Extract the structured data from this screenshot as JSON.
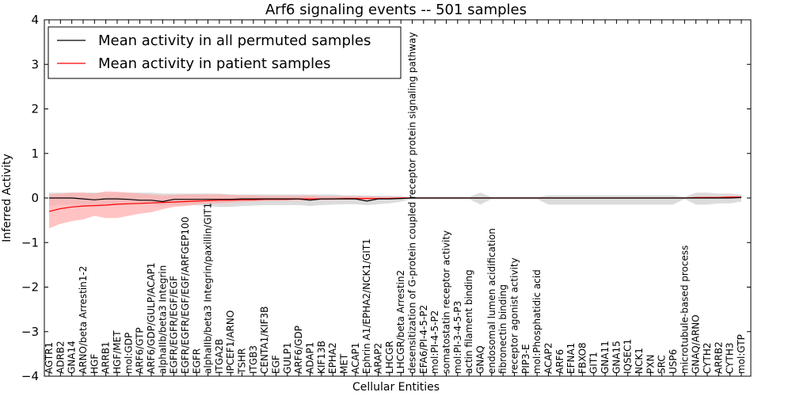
{
  "chart_data": {
    "type": "line",
    "title": "Arf6 signaling events -- 501 samples",
    "xlabel": "Cellular Entities",
    "ylabel": "Inferred Activity",
    "ylim": [
      -4,
      4
    ],
    "yticks": [
      -4,
      -3,
      -2,
      -1,
      0,
      1,
      2,
      3,
      4
    ],
    "ytick_labels": [
      "−4",
      "−3",
      "−2",
      "−1",
      "0",
      "1",
      "2",
      "3",
      "4"
    ],
    "legend_position": "top-left",
    "categories": [
      "AGTR1",
      "ADRB2",
      "GNA14",
      "ARNO/beta Arrestin1-2",
      "HGF",
      "ARRB1",
      "HGF/MET",
      "mol:GDP",
      "ARF6/GTP",
      "ARF6/GDP/GULP/ACAP1",
      "alphaIIb/beta3 Integrin",
      "EGFR/EGFR/EGF/EGF",
      "EGFR/EGFR/EGF/EGF/ARFGEP100",
      "EGFR",
      "alphaIIb/beta3 Integrin/paxillin/GIT1",
      "ITGA2B",
      "IPCEF1/ARNO",
      "TSHR",
      "ITGB3",
      "CENTA1/KIF3B",
      "EGF",
      "GULP1",
      "ARF6/GDP",
      "ADAP1",
      "KIF13B",
      "EPHA2",
      "MET",
      "ACAP1",
      "Ephrin A1/EPHA2/NCK1/GIT1",
      "ARAP2",
      "LHCGR",
      "LHCGR/beta Arrestin2",
      "desensitization of G-protein coupled receptor protein signaling pathway",
      "EFA6/PI-4-5-P2",
      "mol:PI-4-5-P2",
      "somatostatin receptor activity",
      "mol:PI-3-4-5-P3",
      "actin filament binding",
      "GNAQ",
      "endosomal lumen acidification",
      "fibronectin binding",
      "receptor agonist activity",
      "PIP3-E",
      "mol:Phosphatidic acid",
      "ACAP2",
      "ARF6",
      "EFNA1",
      "FBXO8",
      "GIT1",
      "GNA11",
      "GNA15",
      "IQSEC1",
      "NCK1",
      "PXN",
      "SRC",
      "USP6",
      "microtubule-based process",
      "GNAQ/ARNO",
      "CYTH2",
      "ARRB2",
      "CYTH3",
      "mol:GTP"
    ],
    "series": [
      {
        "name": "Mean activity in all permuted samples",
        "color": "#000000",
        "band_color": "#d0d0d0",
        "values": [
          0.0,
          0.0,
          0.0,
          -0.02,
          -0.04,
          -0.02,
          -0.02,
          -0.03,
          -0.05,
          -0.05,
          -0.08,
          -0.03,
          -0.03,
          -0.03,
          -0.03,
          -0.03,
          -0.03,
          -0.02,
          -0.02,
          -0.02,
          -0.02,
          -0.02,
          -0.02,
          -0.05,
          -0.02,
          -0.02,
          -0.02,
          -0.02,
          -0.07,
          -0.02,
          -0.02,
          -0.01,
          0.0,
          0.0,
          0.0,
          0.0,
          0.0,
          0.0,
          0.0,
          0.0,
          0.0,
          0.0,
          0.0,
          0.0,
          0.0,
          0.0,
          0.0,
          0.0,
          0.0,
          0.0,
          0.0,
          0.0,
          0.0,
          0.0,
          0.0,
          0.0,
          0.0,
          0.0,
          0.0,
          0.0,
          0.0,
          0.01
        ],
        "lower": [
          -0.18,
          -0.15,
          -0.15,
          -0.16,
          -0.18,
          -0.16,
          -0.15,
          -0.15,
          -0.15,
          -0.15,
          -0.17,
          -0.16,
          -0.16,
          -0.16,
          -0.18,
          -0.2,
          -0.2,
          -0.18,
          -0.17,
          -0.16,
          -0.16,
          -0.16,
          -0.16,
          -0.18,
          -0.16,
          -0.15,
          -0.14,
          -0.14,
          -0.16,
          -0.14,
          -0.12,
          -0.08,
          -0.02,
          -0.02,
          -0.02,
          -0.02,
          -0.02,
          -0.02,
          -0.15,
          -0.02,
          -0.02,
          -0.02,
          -0.02,
          -0.02,
          -0.15,
          -0.15,
          -0.15,
          -0.15,
          -0.15,
          -0.15,
          -0.15,
          -0.15,
          -0.15,
          -0.15,
          -0.15,
          -0.15,
          -0.02,
          -0.15,
          -0.15,
          -0.12,
          -0.12,
          -0.08
        ],
        "upper": [
          0.12,
          0.12,
          0.12,
          0.12,
          0.12,
          0.12,
          0.12,
          0.12,
          0.12,
          0.12,
          0.1,
          0.1,
          0.1,
          0.1,
          0.1,
          0.1,
          0.08,
          0.08,
          0.08,
          0.08,
          0.08,
          0.08,
          0.08,
          0.08,
          0.08,
          0.08,
          0.06,
          0.06,
          0.06,
          0.05,
          0.05,
          0.04,
          0.02,
          0.02,
          0.02,
          0.02,
          0.02,
          0.02,
          0.12,
          0.02,
          0.02,
          0.02,
          0.02,
          0.02,
          0.06,
          0.06,
          0.06,
          0.06,
          0.06,
          0.06,
          0.06,
          0.06,
          0.06,
          0.06,
          0.06,
          0.06,
          0.02,
          0.12,
          0.12,
          0.1,
          0.1,
          0.08
        ]
      },
      {
        "name": "Mean activity in patient samples",
        "color": "#ff0000",
        "band_color": "#ffaaaa",
        "values": [
          -0.3,
          -0.24,
          -0.2,
          -0.18,
          -0.17,
          -0.16,
          -0.14,
          -0.13,
          -0.12,
          -0.11,
          -0.1,
          -0.09,
          -0.08,
          -0.07,
          -0.06,
          -0.05,
          -0.05,
          -0.04,
          -0.04,
          -0.03,
          -0.03,
          -0.03,
          -0.02,
          -0.02,
          -0.02,
          -0.02,
          -0.01,
          -0.01,
          -0.01,
          -0.01,
          -0.01,
          0.0,
          0.0,
          0.0,
          0.0,
          0.0,
          0.0,
          0.0,
          0.0,
          0.0,
          0.0,
          0.0,
          0.0,
          0.0,
          0.0,
          0.0,
          0.0,
          0.0,
          0.0,
          0.0,
          0.0,
          0.0,
          0.0,
          0.0,
          0.0,
          0.0,
          0.0,
          0.01,
          0.01,
          0.01,
          0.02,
          0.02
        ],
        "lower": [
          -0.68,
          -0.58,
          -0.52,
          -0.48,
          -0.4,
          -0.45,
          -0.45,
          -0.4,
          -0.35,
          -0.32,
          -0.25,
          -0.2,
          -0.18,
          -0.15,
          -0.13,
          -0.12,
          -0.1,
          -0.09,
          -0.08,
          -0.07,
          -0.07,
          -0.06,
          -0.06,
          -0.05,
          -0.05,
          -0.05,
          -0.04,
          -0.04,
          -0.04,
          -0.03,
          -0.03,
          -0.02,
          -0.01,
          -0.01,
          -0.01,
          -0.01,
          -0.01,
          -0.01,
          -0.01,
          -0.01,
          -0.01,
          -0.01,
          -0.01,
          -0.01,
          -0.01,
          -0.01,
          -0.01,
          -0.01,
          -0.01,
          -0.01,
          -0.01,
          -0.01,
          -0.01,
          -0.01,
          -0.01,
          -0.01,
          -0.01,
          -0.01,
          -0.01,
          -0.01,
          -0.01,
          -0.01
        ],
        "upper": [
          0.08,
          0.1,
          0.12,
          0.12,
          0.1,
          0.15,
          0.14,
          0.12,
          0.1,
          0.08,
          0.06,
          0.07,
          0.08,
          0.08,
          0.08,
          0.08,
          0.07,
          0.06,
          0.06,
          0.05,
          0.05,
          0.05,
          0.05,
          0.05,
          0.04,
          0.04,
          0.04,
          0.04,
          0.03,
          0.03,
          0.03,
          0.02,
          0.01,
          0.01,
          0.01,
          0.01,
          0.01,
          0.01,
          0.01,
          0.01,
          0.01,
          0.01,
          0.01,
          0.01,
          0.01,
          0.01,
          0.01,
          0.01,
          0.01,
          0.01,
          0.01,
          0.01,
          0.01,
          0.01,
          0.01,
          0.01,
          0.01,
          0.02,
          0.03,
          0.03,
          0.04,
          0.04
        ]
      }
    ]
  }
}
